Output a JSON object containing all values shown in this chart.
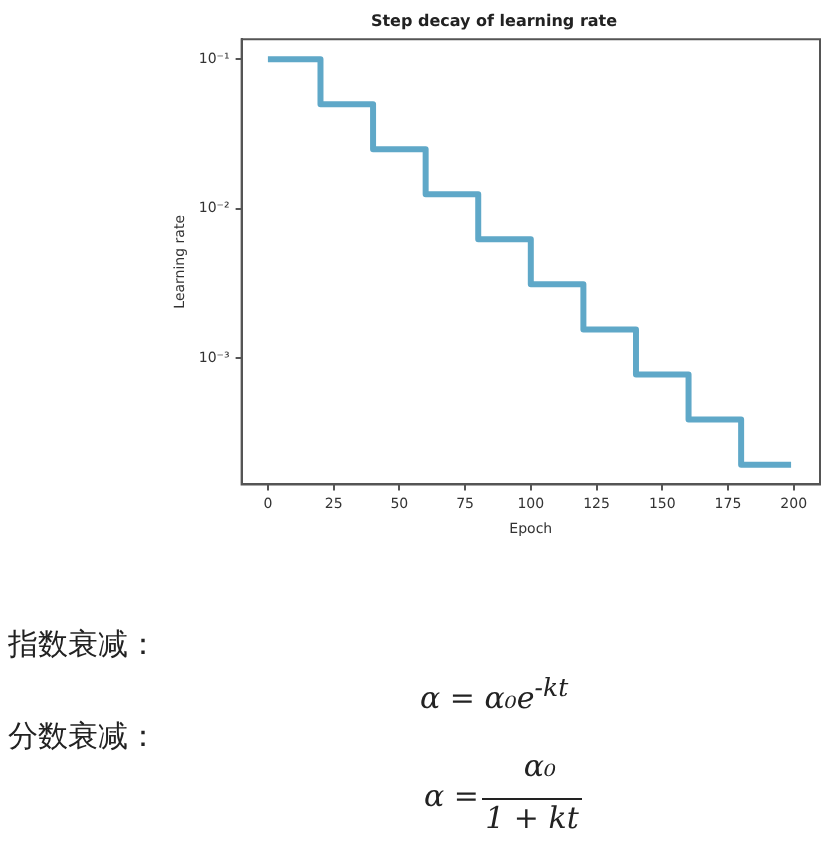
{
  "chart_data": {
    "type": "step",
    "title": "Step decay of learning rate",
    "xlabel": "Epoch",
    "ylabel": "Learning rate",
    "x": [
      0,
      20,
      40,
      60,
      80,
      100,
      120,
      140,
      160,
      180,
      199
    ],
    "series": [
      {
        "color": "#5fa8c8",
        "values": [
          0.1,
          0.05,
          0.025,
          0.0125,
          0.00625,
          0.00313,
          0.00156,
          0.000781,
          0.000391,
          0.000195,
          0.000195
        ]
      }
    ],
    "log": "y",
    "xlim": [
      -10,
      210
    ],
    "xticks": [
      0,
      25,
      50,
      75,
      100,
      125,
      150,
      175,
      200
    ],
    "ylim": [
      0.000144,
      0.136
    ],
    "yticks": [
      {
        "value": 0.1,
        "label": "10⁻¹"
      },
      {
        "value": 0.01,
        "label": "10⁻²"
      },
      {
        "value": 0.001,
        "label": "10⁻³"
      }
    ],
    "legend": false,
    "annotations": [
      "指数衰减：",
      "α = α₀e$^{-kt}$",
      "分数衰减：",
      "α =",
      "α₀",
      "1 + kt"
    ]
  }
}
